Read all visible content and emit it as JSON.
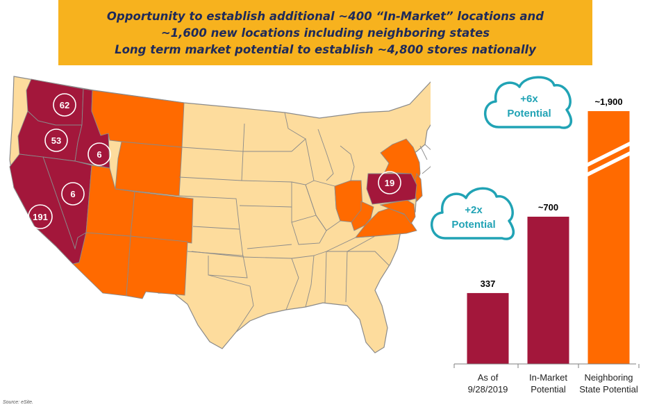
{
  "banner": {
    "lines": [
      "Opportunity to establish additional ~400 “In-Market” locations and",
      "~1,600 new locations including neighboring states",
      "Long term market potential to establish ~4,800 stores nationally"
    ]
  },
  "map": {
    "in_market_color": "#a3173b",
    "neighboring_color": "#ff6a00",
    "other_color": "#fddc9d",
    "border_color": "#8a8a8a",
    "badges": [
      {
        "state": "WA",
        "value": "62"
      },
      {
        "state": "OR",
        "value": "53"
      },
      {
        "state": "ID",
        "value": "6"
      },
      {
        "state": "NV",
        "value": "6"
      },
      {
        "state": "CA",
        "value": "191"
      },
      {
        "state": "PA",
        "value": "19"
      }
    ]
  },
  "chart_data": {
    "type": "bar",
    "categories": [
      "As of 9/28/2019",
      "In-Market Potential",
      "Neighboring State Potential"
    ],
    "category_lines": [
      [
        "As of",
        "9/28/2019"
      ],
      [
        "In-Market",
        "Potential"
      ],
      [
        "Neighboring",
        "State Potential"
      ]
    ],
    "values": [
      337,
      700,
      1900
    ],
    "value_labels": [
      "337",
      "~700",
      "~1,900"
    ],
    "colors": [
      "#a3173b",
      "#a3173b",
      "#ff6a00"
    ],
    "axis_break_on": "Neighboring State Potential",
    "ylim": [
      0,
      1900
    ],
    "callouts": [
      {
        "text": [
          "+2x",
          "Potential"
        ],
        "near": "In-Market Potential"
      },
      {
        "text": [
          "+6x",
          "Potential"
        ],
        "near": "Neighboring State Potential"
      }
    ],
    "callout_color": "#21a3b5",
    "title": "",
    "xlabel": "",
    "ylabel": ""
  },
  "source": "Source: eSite."
}
